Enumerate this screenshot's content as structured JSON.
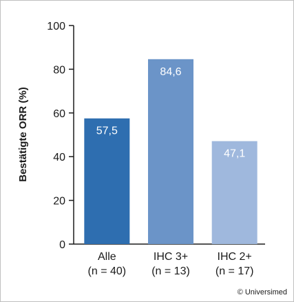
{
  "chart_data": {
    "type": "bar",
    "ylabel": "Bestätigte ORR (%)",
    "ylim": [
      0,
      100
    ],
    "yticks": [
      0,
      20,
      40,
      60,
      80,
      100
    ],
    "categories": [
      {
        "line1": "Alle",
        "line2": "(n = 40)"
      },
      {
        "line1": "IHC 3+",
        "line2": "(n = 13)"
      },
      {
        "line1": "IHC 2+",
        "line2": "(n = 17)"
      }
    ],
    "values": [
      57.5,
      84.6,
      47.1
    ],
    "value_labels": [
      "57,5",
      "84,6",
      "47,1"
    ],
    "colors": [
      "#2e6eb0",
      "#6b94c8",
      "#9fb8dd"
    ],
    "grid": false,
    "legend": "none"
  },
  "credit": "© Universimed"
}
